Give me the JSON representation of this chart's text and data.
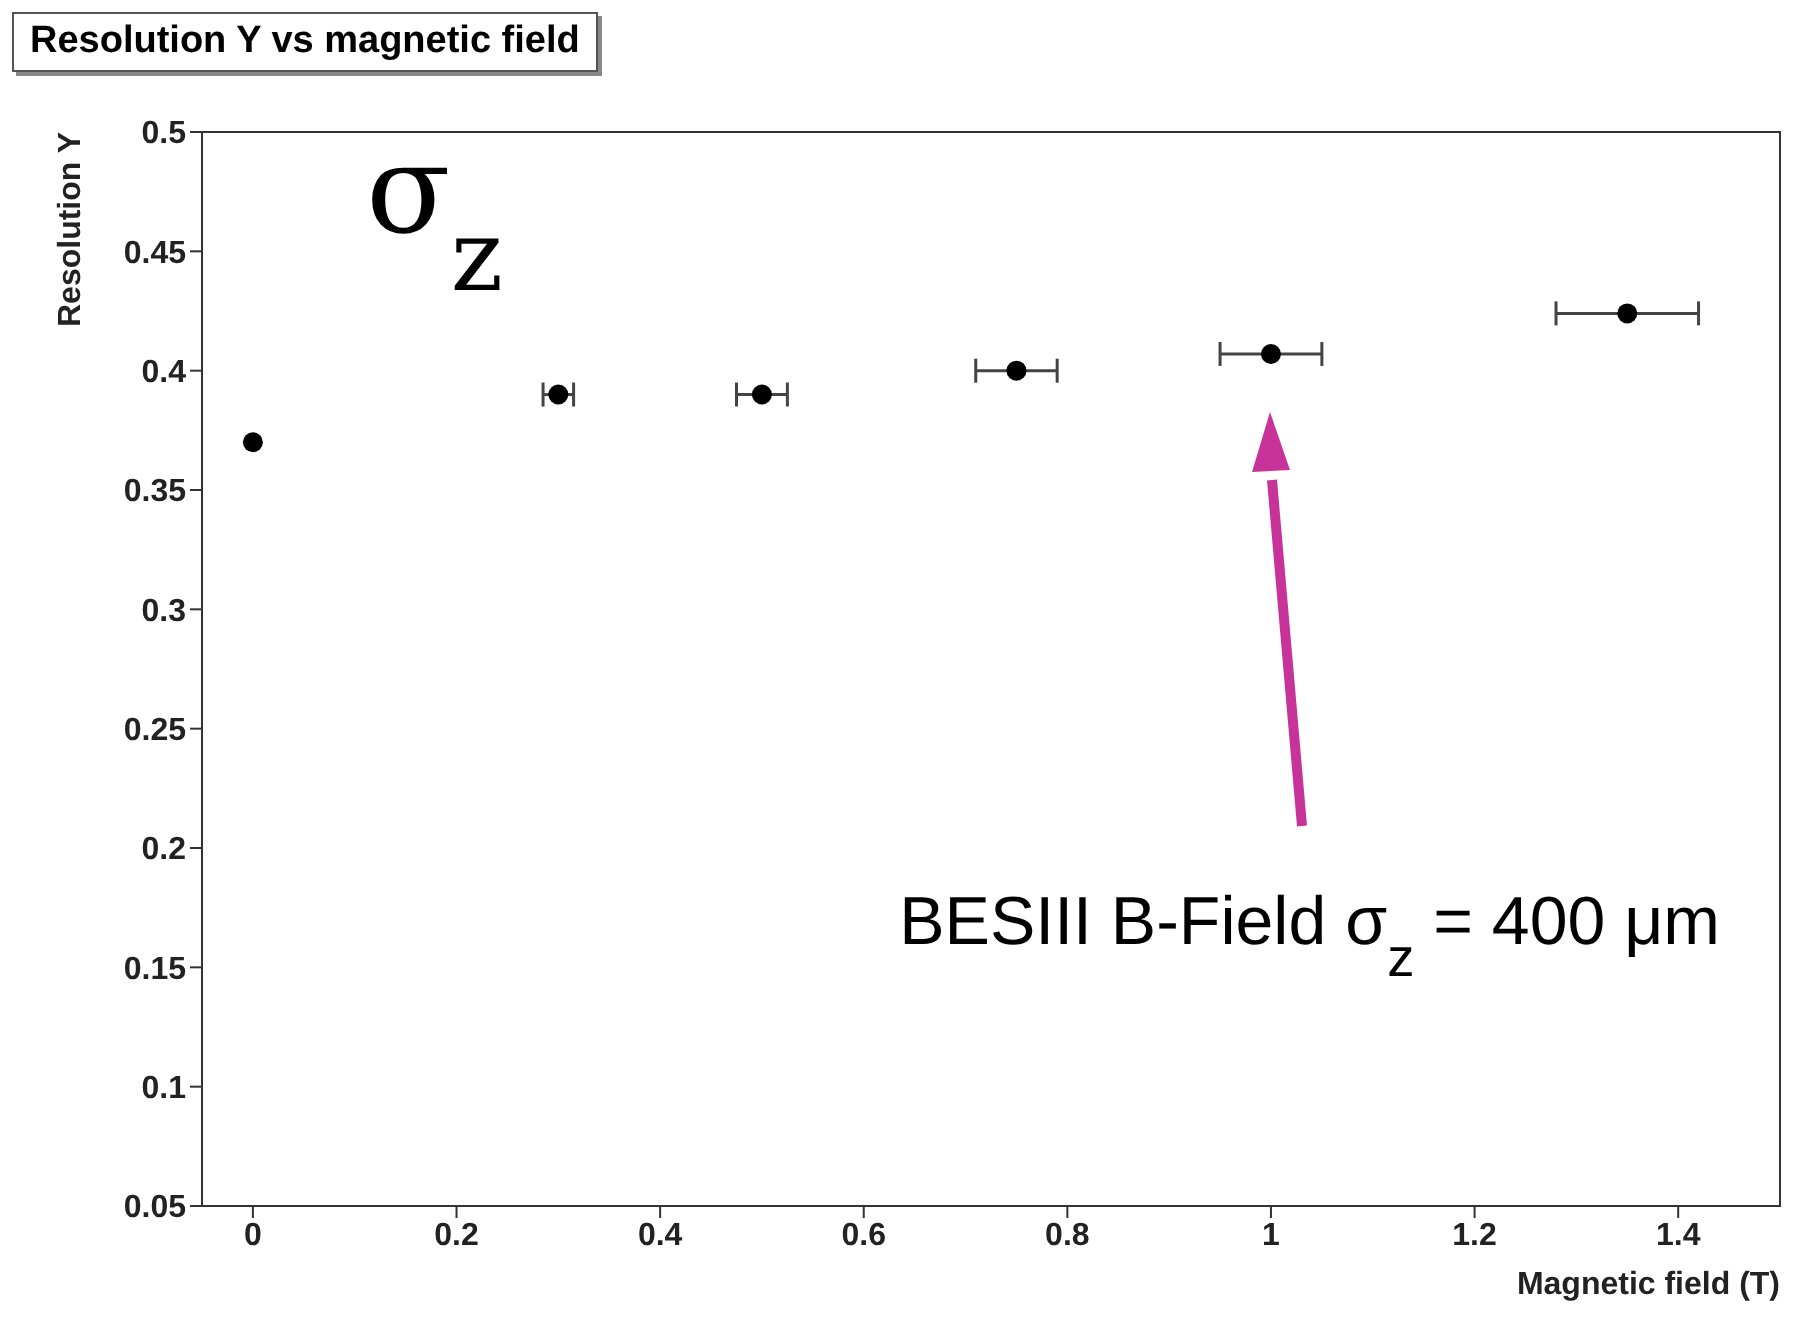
{
  "chart_data": {
    "type": "scatter",
    "title": "Resolution Y vs magnetic field",
    "xlabel": "Magnetic field (T)",
    "ylabel": "Resolution Y",
    "x": [
      0,
      0.3,
      0.5,
      0.75,
      1,
      1.35
    ],
    "series": [
      {
        "color": "#000000",
        "values": [
          0.37,
          0.39,
          0.39,
          0.4,
          0.407,
          0.424
        ],
        "xerrors": [
          null,
          0.015,
          0.025,
          0.04,
          0.05,
          0.07
        ]
      }
    ],
    "xlim": [
      -0.05,
      1.5
    ],
    "xticks": [
      0,
      0.2,
      0.4,
      0.6,
      0.8,
      1,
      1.2,
      1.4
    ],
    "ylim": [
      0.05,
      0.5
    ],
    "yticks": [
      0.05,
      0.1,
      0.15,
      0.2,
      0.25,
      0.3,
      0.35,
      0.4,
      0.45,
      0.5
    ],
    "marker": "circle",
    "grid": false,
    "legend": false,
    "annotations": [
      "σ$_{z}$",
      "BESIII B-Field σ$_{z}$ = 400 μm"
    ]
  }
}
